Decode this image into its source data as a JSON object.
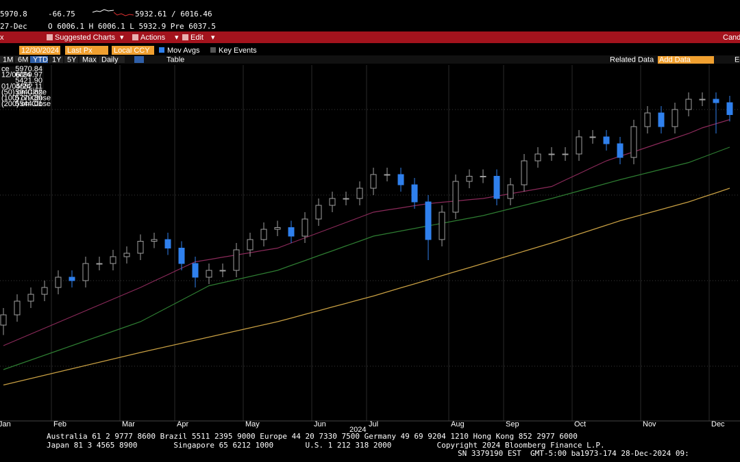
{
  "header": {
    "last": "5970.8",
    "change": "-66.75",
    "range": "5932.61 / 6016.46",
    "date": "27-Dec",
    "ohlc": "O 6006.1 H 6006.1 L 5932.9 Pre 6037.5"
  },
  "menu": {
    "left": "x",
    "items": [
      "Suggested Charts",
      "Actions",
      "Edit"
    ],
    "right": "Cand"
  },
  "toolbar": {
    "fields": [
      "12/30/2024",
      "Last Px",
      "Local CCY"
    ],
    "checks": [
      "Mov Avgs",
      "Key Events"
    ]
  },
  "periods": {
    "buttons": [
      "1M",
      "6M",
      "YTD",
      "1Y",
      "5Y",
      "Max",
      "Daily"
    ],
    "active": "YTD",
    "table": "Table",
    "related": "Related Data",
    "add": "Add Data",
    "edit": "Ed"
  },
  "chart_data": {
    "type": "candlestick",
    "categories": [
      "Jan",
      null,
      null,
      null,
      "Feb",
      null,
      null,
      null,
      null,
      "Mar",
      null,
      null,
      null,
      "Apr",
      null,
      null,
      null,
      null,
      "May",
      null,
      null,
      null,
      null,
      "Jun",
      null,
      null,
      null,
      "Jul",
      null,
      null,
      null,
      null,
      null,
      "Aug",
      null,
      null,
      null,
      "Sep",
      null,
      null,
      null,
      null,
      "Oct",
      null,
      null,
      null,
      null,
      "Nov",
      null,
      null,
      null,
      null,
      "Dec",
      null
    ],
    "year_label": "2024",
    "open": [
      4740,
      4800,
      4880,
      4920,
      4960,
      5020,
      5000,
      5100,
      5100,
      5140,
      5160,
      5230,
      5240,
      5190,
      5100,
      5020,
      5060,
      5060,
      5180,
      5240,
      5300,
      5310,
      5260,
      5360,
      5440,
      5480,
      5480,
      5540,
      5620,
      5620,
      5560,
      5460,
      5240,
      5400,
      5580,
      5610,
      5610,
      5480,
      5560,
      5700,
      5740,
      5740,
      5740,
      5840,
      5840,
      5800,
      5720,
      5900,
      5980,
      5900,
      6000,
      6060,
      6060,
      6040
    ],
    "high": [
      4840,
      4920,
      4960,
      5000,
      5060,
      5060,
      5140,
      5140,
      5180,
      5200,
      5270,
      5280,
      5280,
      5230,
      5140,
      5100,
      5100,
      5220,
      5280,
      5340,
      5350,
      5350,
      5400,
      5480,
      5520,
      5520,
      5580,
      5660,
      5660,
      5660,
      5600,
      5500,
      5440,
      5620,
      5650,
      5650,
      5650,
      5600,
      5740,
      5780,
      5780,
      5780,
      5880,
      5880,
      5880,
      5840,
      5940,
      6020,
      6020,
      6040,
      6100,
      6100,
      6100,
      6080
    ],
    "low": [
      4682,
      4760,
      4840,
      4880,
      4920,
      4960,
      4960,
      5060,
      5060,
      5100,
      5120,
      5190,
      5150,
      5060,
      4960,
      4980,
      5020,
      5020,
      5140,
      5200,
      5260,
      5220,
      5220,
      5320,
      5400,
      5440,
      5440,
      5500,
      5580,
      5520,
      5420,
      5120,
      5200,
      5360,
      5540,
      5570,
      5440,
      5440,
      5520,
      5660,
      5700,
      5700,
      5700,
      5800,
      5760,
      5680,
      5680,
      5860,
      5860,
      5860,
      5960,
      6020,
      5860,
      5930
    ],
    "close": [
      4800,
      4880,
      4920,
      4960,
      5020,
      5000,
      5100,
      5100,
      5140,
      5160,
      5230,
      5240,
      5190,
      5100,
      5020,
      5060,
      5060,
      5180,
      5240,
      5300,
      5310,
      5260,
      5360,
      5440,
      5480,
      5480,
      5540,
      5620,
      5620,
      5560,
      5460,
      5240,
      5400,
      5580,
      5610,
      5610,
      5480,
      5560,
      5700,
      5740,
      5740,
      5740,
      5840,
      5840,
      5800,
      5720,
      5900,
      5980,
      5900,
      6000,
      6060,
      6060,
      6040,
      5970
    ],
    "up_color": "#000000",
    "up_edge": "#a0a0a0",
    "down_color": "#2f80ed",
    "series": [
      {
        "color": "#8b2a5a",
        "values": [
          4620,
          4654,
          4688,
          4722,
          4756,
          4790,
          4824,
          4858,
          4892,
          4926,
          4960,
          4998,
          5035,
          5073,
          5110,
          5123,
          5137,
          5150,
          5163,
          5177,
          5190,
          5220,
          5250,
          5280,
          5310,
          5340,
          5370,
          5400,
          5413,
          5425,
          5438,
          5450,
          5458,
          5465,
          5473,
          5480,
          5494,
          5508,
          5522,
          5536,
          5550,
          5588,
          5625,
          5663,
          5700,
          5727,
          5753,
          5780,
          5807,
          5833,
          5860,
          5893,
          5917,
          5941
        ]
      },
      {
        "color": "#2e7d32",
        "values": [
          4480,
          4508,
          4536,
          4564,
          4592,
          4620,
          4648,
          4676,
          4704,
          4732,
          4760,
          4802,
          4844,
          4886,
          4928,
          4970,
          4988,
          5006,
          5024,
          5042,
          5060,
          5089,
          5117,
          5146,
          5174,
          5203,
          5231,
          5260,
          5275,
          5290,
          5305,
          5320,
          5335,
          5350,
          5365,
          5380,
          5400,
          5420,
          5440,
          5460,
          5480,
          5502,
          5524,
          5546,
          5568,
          5590,
          5610,
          5630,
          5650,
          5670,
          5690,
          5720,
          5750,
          5780
        ]
      },
      {
        "color": "#c9a043",
        "values": [
          4390,
          4409,
          4428,
          4447,
          4466,
          4485,
          4504,
          4523,
          4542,
          4561,
          4580,
          4598,
          4616,
          4634,
          4652,
          4670,
          4688,
          4706,
          4724,
          4742,
          4760,
          4781,
          4803,
          4824,
          4846,
          4867,
          4889,
          4910,
          4934,
          4958,
          4981,
          5005,
          5029,
          5053,
          5076,
          5100,
          5124,
          5148,
          5172,
          5196,
          5220,
          5246,
          5272,
          5298,
          5324,
          5350,
          5372,
          5394,
          5416,
          5438,
          5460,
          5487,
          5513,
          5540
        ]
      }
    ],
    "ylim": [
      4180,
      6260
    ],
    "ygrid": [
      4500,
      5000,
      5500,
      6000
    ],
    "legend": [
      {
        "label": "ce",
        "value": "5970.84"
      },
      {
        "label": "12/06/24",
        "value": "6099.97"
      },
      {
        "value": "5421.90"
      },
      {
        "label": "01/05/24",
        "value": "4682.11"
      },
      {
        "label": "(50)  on Close",
        "value": "5940.82"
      },
      {
        "label": "(100)  on Close",
        "value": "5779.89"
      },
      {
        "label": "(200)  on Close",
        "value": "5544.01"
      }
    ]
  },
  "footer": {
    "lines": [
      "Australia 61 2 9777 8600 Brazil 5511 2395 9000 Europe 44 20 7330 7500 Germany 49 69 9204 1210 Hong Kong 852 2977 6000",
      "Japan 81 3 4565 8900        Singapore 65 6212 1000       U.S. 1 212 318 2000          Copyright 2024 Bloomberg Finance L.P.",
      "SN 3379190 EST  GMT-5:00 ba1973-174 28-Dec-2024 09:"
    ]
  }
}
